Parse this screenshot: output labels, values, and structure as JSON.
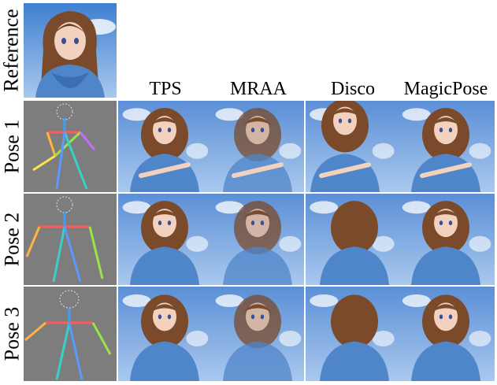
{
  "figure": {
    "reference_label": "Reference",
    "columns": [
      {
        "label": "TPS"
      },
      {
        "label": "MRAA"
      },
      {
        "label": "Disco"
      },
      {
        "label": "MagicPose"
      }
    ],
    "rows": [
      {
        "label": "Pose 1"
      },
      {
        "label": "Pose 2"
      },
      {
        "label": "Pose 3"
      }
    ],
    "colors": {
      "sky": "#5b8fd6",
      "sky_light": "#a9c8ee",
      "hair": "#7a4a2a",
      "shirt": "#4f86c9",
      "skin": "#f2d2bf",
      "pose_bg": "#7d7d7d"
    }
  }
}
